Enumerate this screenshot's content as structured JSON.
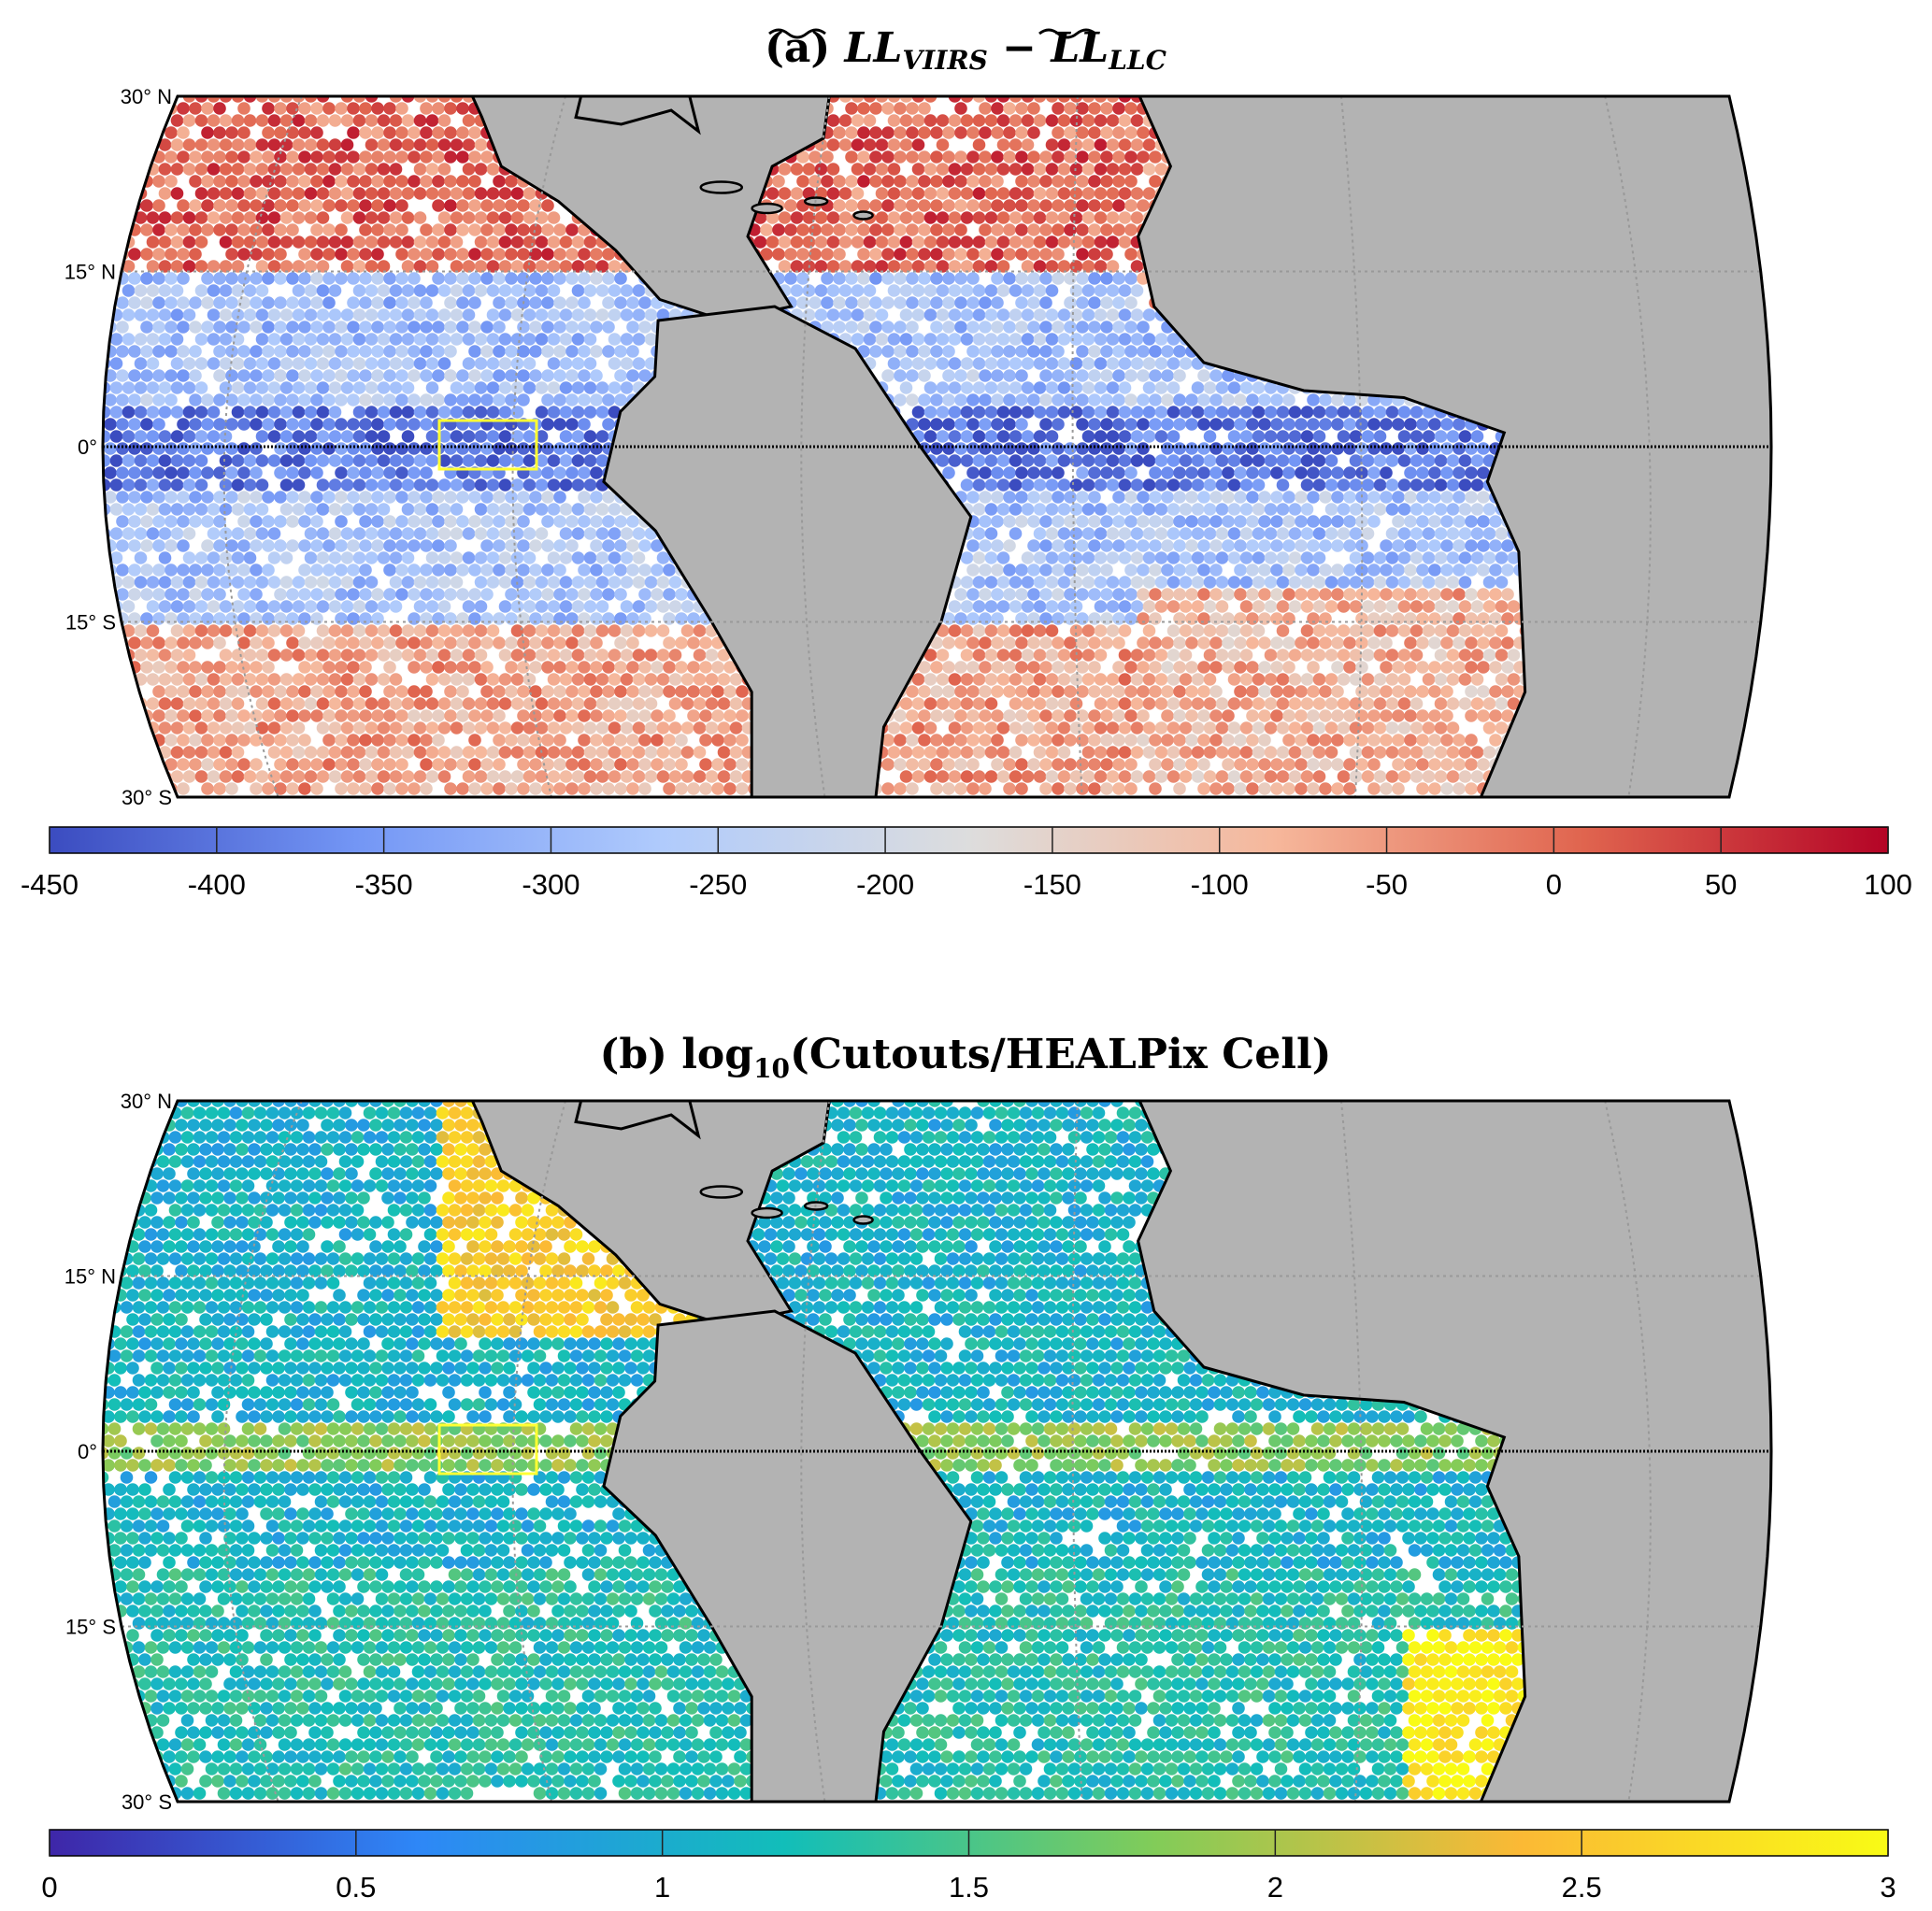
{
  "panels": [
    {
      "title_prefix": "(a) ",
      "title_term1": "LL",
      "title_sub1": "VIIRS",
      "title_minus": " − ",
      "title_term2": "LL",
      "title_sub2": "LLC",
      "lat_labels": [
        "30° N",
        "15° N",
        "0°",
        "15° S",
        "30° S"
      ],
      "colormap": "blue-white-red (diverging)",
      "colorbar": {
        "min": -450,
        "max": 100,
        "ticks": [
          "-450",
          "-400",
          "-350",
          "-300",
          "-250",
          "-200",
          "-150",
          "-100",
          "-50",
          "0",
          "50",
          "100"
        ]
      }
    },
    {
      "title_prefix": "(b) log",
      "title_sub": "10",
      "title_rest": "(Cutouts/HEALPix Cell)",
      "lat_labels": [
        "30° N",
        "15° N",
        "0°",
        "15° S",
        "30° S"
      ],
      "colormap": "blue-cyan-yellow (sequential)",
      "colorbar": {
        "min": 0,
        "max": 3,
        "ticks": [
          "0",
          "0.5",
          "1",
          "1.5",
          "2",
          "2.5",
          "3"
        ]
      }
    }
  ],
  "colors": {
    "land": "#b3b3b3",
    "coast": "#000000",
    "highlight_box": "#ffff33",
    "diverging": [
      "#3b4cc0",
      "#7396f5",
      "#b0cbfc",
      "#dddddd",
      "#f6b79b",
      "#e0654f",
      "#b40426"
    ],
    "sequential": [
      "#3e26a8",
      "#2e87f7",
      "#12beb9",
      "#81cc59",
      "#fbb935",
      "#f9fb15"
    ]
  }
}
